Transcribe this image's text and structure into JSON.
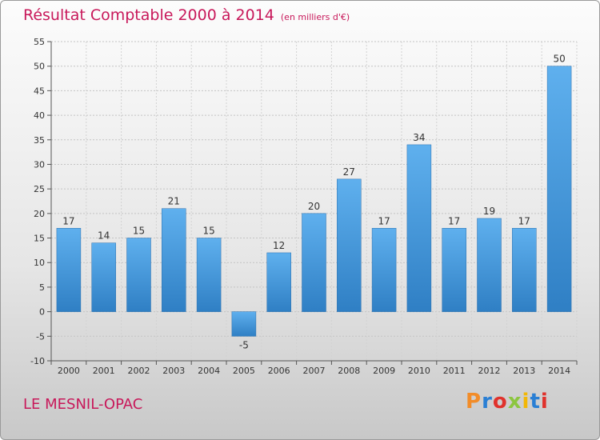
{
  "chart_data": {
    "type": "bar",
    "title": "Résultat Comptable 2000 à 2014",
    "unit_note": "(en milliers d'€)",
    "categories": [
      "2000",
      "2001",
      "2002",
      "2003",
      "2004",
      "2005",
      "2006",
      "2007",
      "2008",
      "2009",
      "2010",
      "2011",
      "2012",
      "2013",
      "2014"
    ],
    "values": [
      17,
      14,
      15,
      21,
      15,
      -5,
      12,
      20,
      27,
      17,
      34,
      17,
      19,
      17,
      50
    ],
    "ylim": [
      -10,
      55
    ],
    "yticks": [
      -10,
      -5,
      0,
      5,
      10,
      15,
      20,
      25,
      30,
      35,
      40,
      45,
      50,
      55
    ],
    "grid": true,
    "xlabel": "",
    "ylabel": "",
    "bar_color": "#3d8fd6"
  },
  "footer": {
    "town": "LE MESNIL-OPAC",
    "logo": "Proxiti",
    "logo_colors": [
      "#f28c28",
      "#2a7fd4",
      "#e0322c",
      "#8cc63f",
      "#f2b705",
      "#2a7fd4",
      "#e0322c"
    ]
  }
}
